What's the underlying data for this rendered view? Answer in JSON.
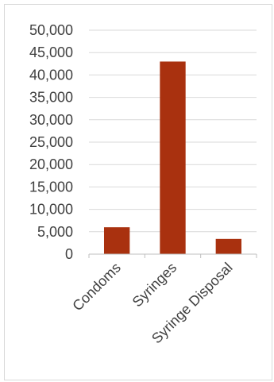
{
  "chart_data": {
    "type": "bar",
    "categories": [
      "Condoms",
      "Syringes",
      "Syringe Disposal"
    ],
    "values": [
      6000,
      43000,
      3400
    ],
    "ylim": [
      0,
      50000
    ],
    "yticks": [
      0,
      5000,
      10000,
      15000,
      20000,
      25000,
      30000,
      35000,
      40000,
      45000,
      50000
    ],
    "ytick_labels": [
      "0",
      "5,000",
      "10,000",
      "15,000",
      "20,000",
      "25,000",
      "30,000",
      "35,000",
      "40,000",
      "45,000",
      "50,000"
    ],
    "grid": true,
    "legend": "none",
    "bar_color": "#a9310f",
    "gridline_color": "#d9d9d9"
  }
}
